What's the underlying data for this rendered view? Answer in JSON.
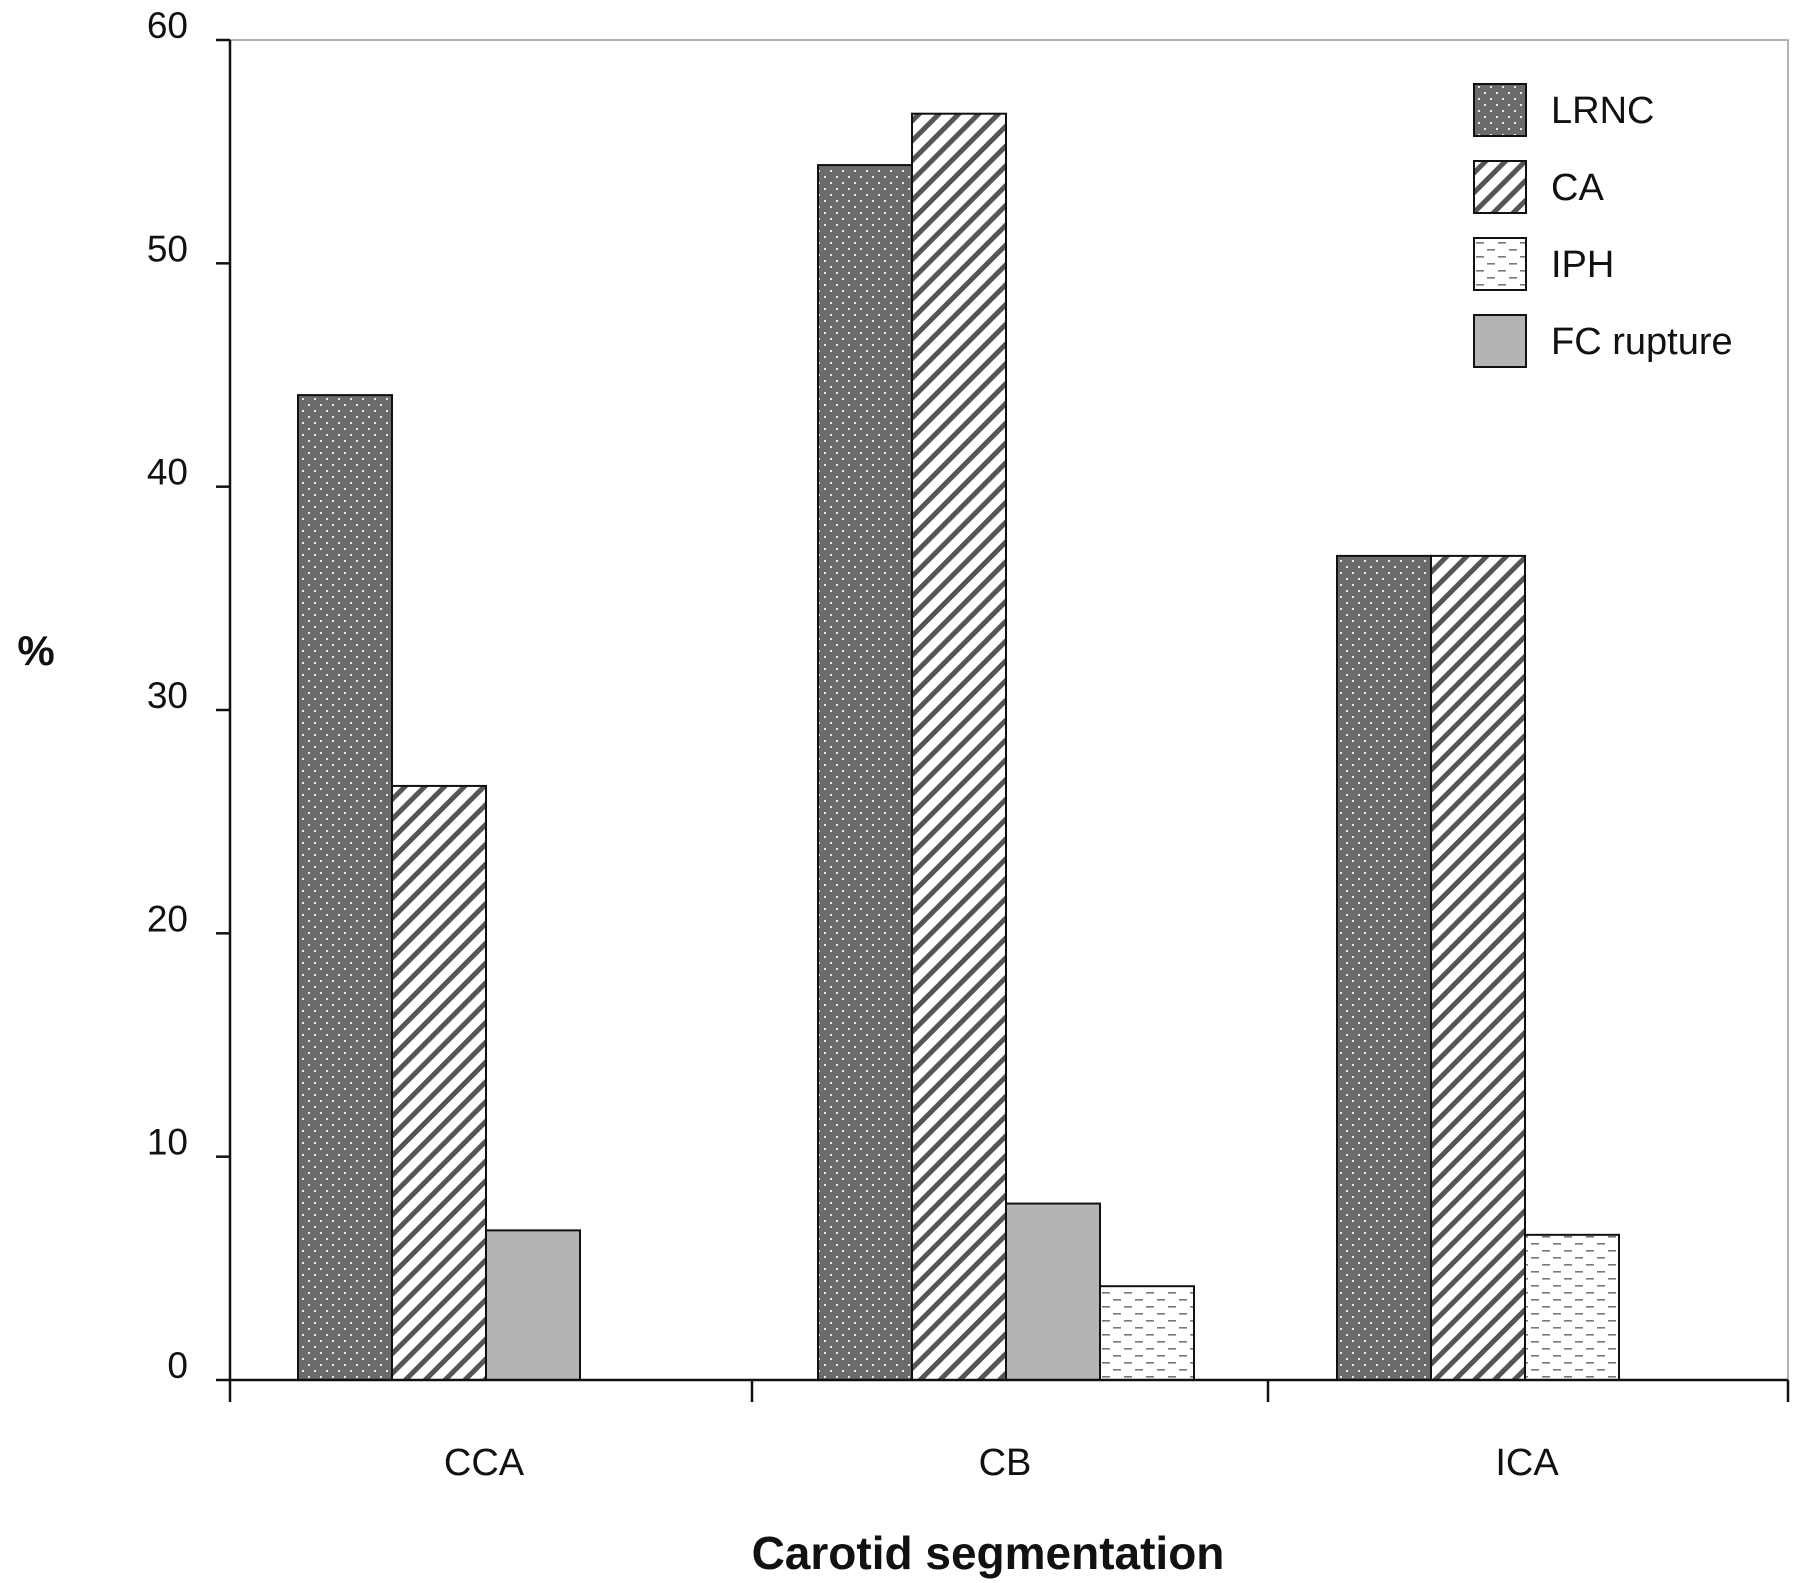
{
  "chart_data": {
    "type": "bar",
    "title": "",
    "xlabel": "Carotid segmentation",
    "ylabel": "%",
    "ylim": [
      0,
      60
    ],
    "yticks": [
      0,
      10,
      20,
      30,
      40,
      50,
      60
    ],
    "ytick_labels": [
      "0",
      "10",
      "20",
      "30",
      "40",
      "50",
      "60"
    ],
    "categories": [
      "CCA",
      "CB",
      "ICA"
    ],
    "legend_position": "top-right",
    "grid": false,
    "series": [
      {
        "name": "LRNC",
        "pattern": "dots",
        "color": "#6b6b6b",
        "values": [
          44.1,
          54.4,
          36.9
        ]
      },
      {
        "name": "CA",
        "pattern": "diagonal-stripes",
        "color": "#ffffff",
        "values": [
          26.6,
          56.7,
          36.9
        ]
      },
      {
        "name": "FC rupture",
        "pattern": "solid",
        "color": "#b4b4b4",
        "values": [
          6.7,
          7.9,
          null
        ]
      },
      {
        "name": "IPH",
        "pattern": "dashes",
        "color": "#ffffff",
        "values": [
          null,
          4.2,
          6.5
        ]
      }
    ],
    "bar_order": [
      [
        "LRNC",
        "CA",
        "FC rupture"
      ],
      [
        "LRNC",
        "CA",
        "FC rupture",
        "IPH"
      ],
      [
        "LRNC",
        "CA",
        "IPH"
      ]
    ],
    "legend_entries": [
      "LRNC",
      "CA",
      "IPH",
      "FC rupture"
    ]
  }
}
